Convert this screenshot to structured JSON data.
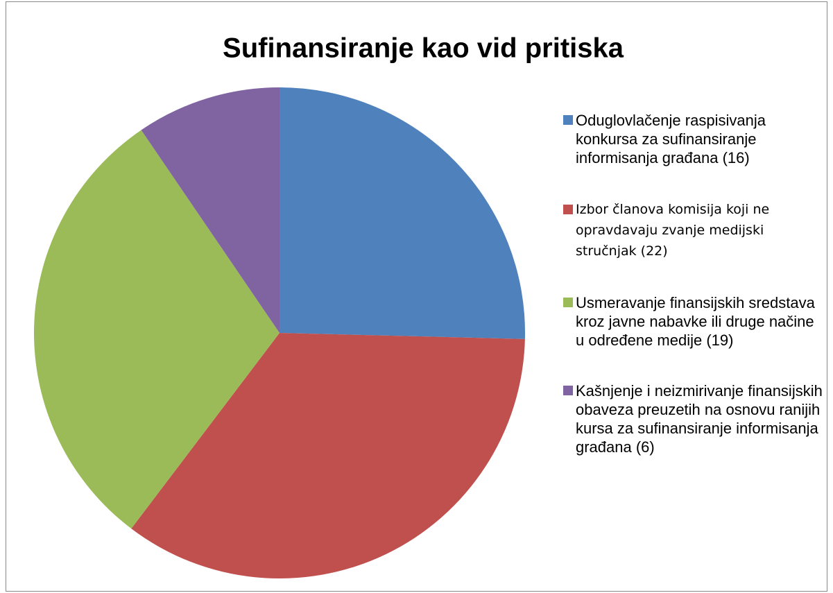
{
  "chart_data": {
    "type": "pie",
    "title": "Sufinansiranje kao vid pritiska",
    "categories": [
      "Oduglovlačenje raspisivanja konkursa za sufinansiranje informisanja građana (16)",
      "Izbor članova komisija koji ne opravdavaju zvanje medijski stručnjak (22)",
      "Usmeravanje finansijskih sredstava kroz javne nabavke ili druge načine u određene medije (19)",
      "Kašnjenje i neizmirivanje finansijskih obaveza preuzetih na osnovu ranijih kursa za sufinansiranje informisanja građana (6)"
    ],
    "values": [
      16,
      22,
      19,
      6
    ],
    "colors": [
      "#4f81bd",
      "#c0504d",
      "#9bbb59",
      "#8064a2"
    ],
    "legend": "right"
  }
}
